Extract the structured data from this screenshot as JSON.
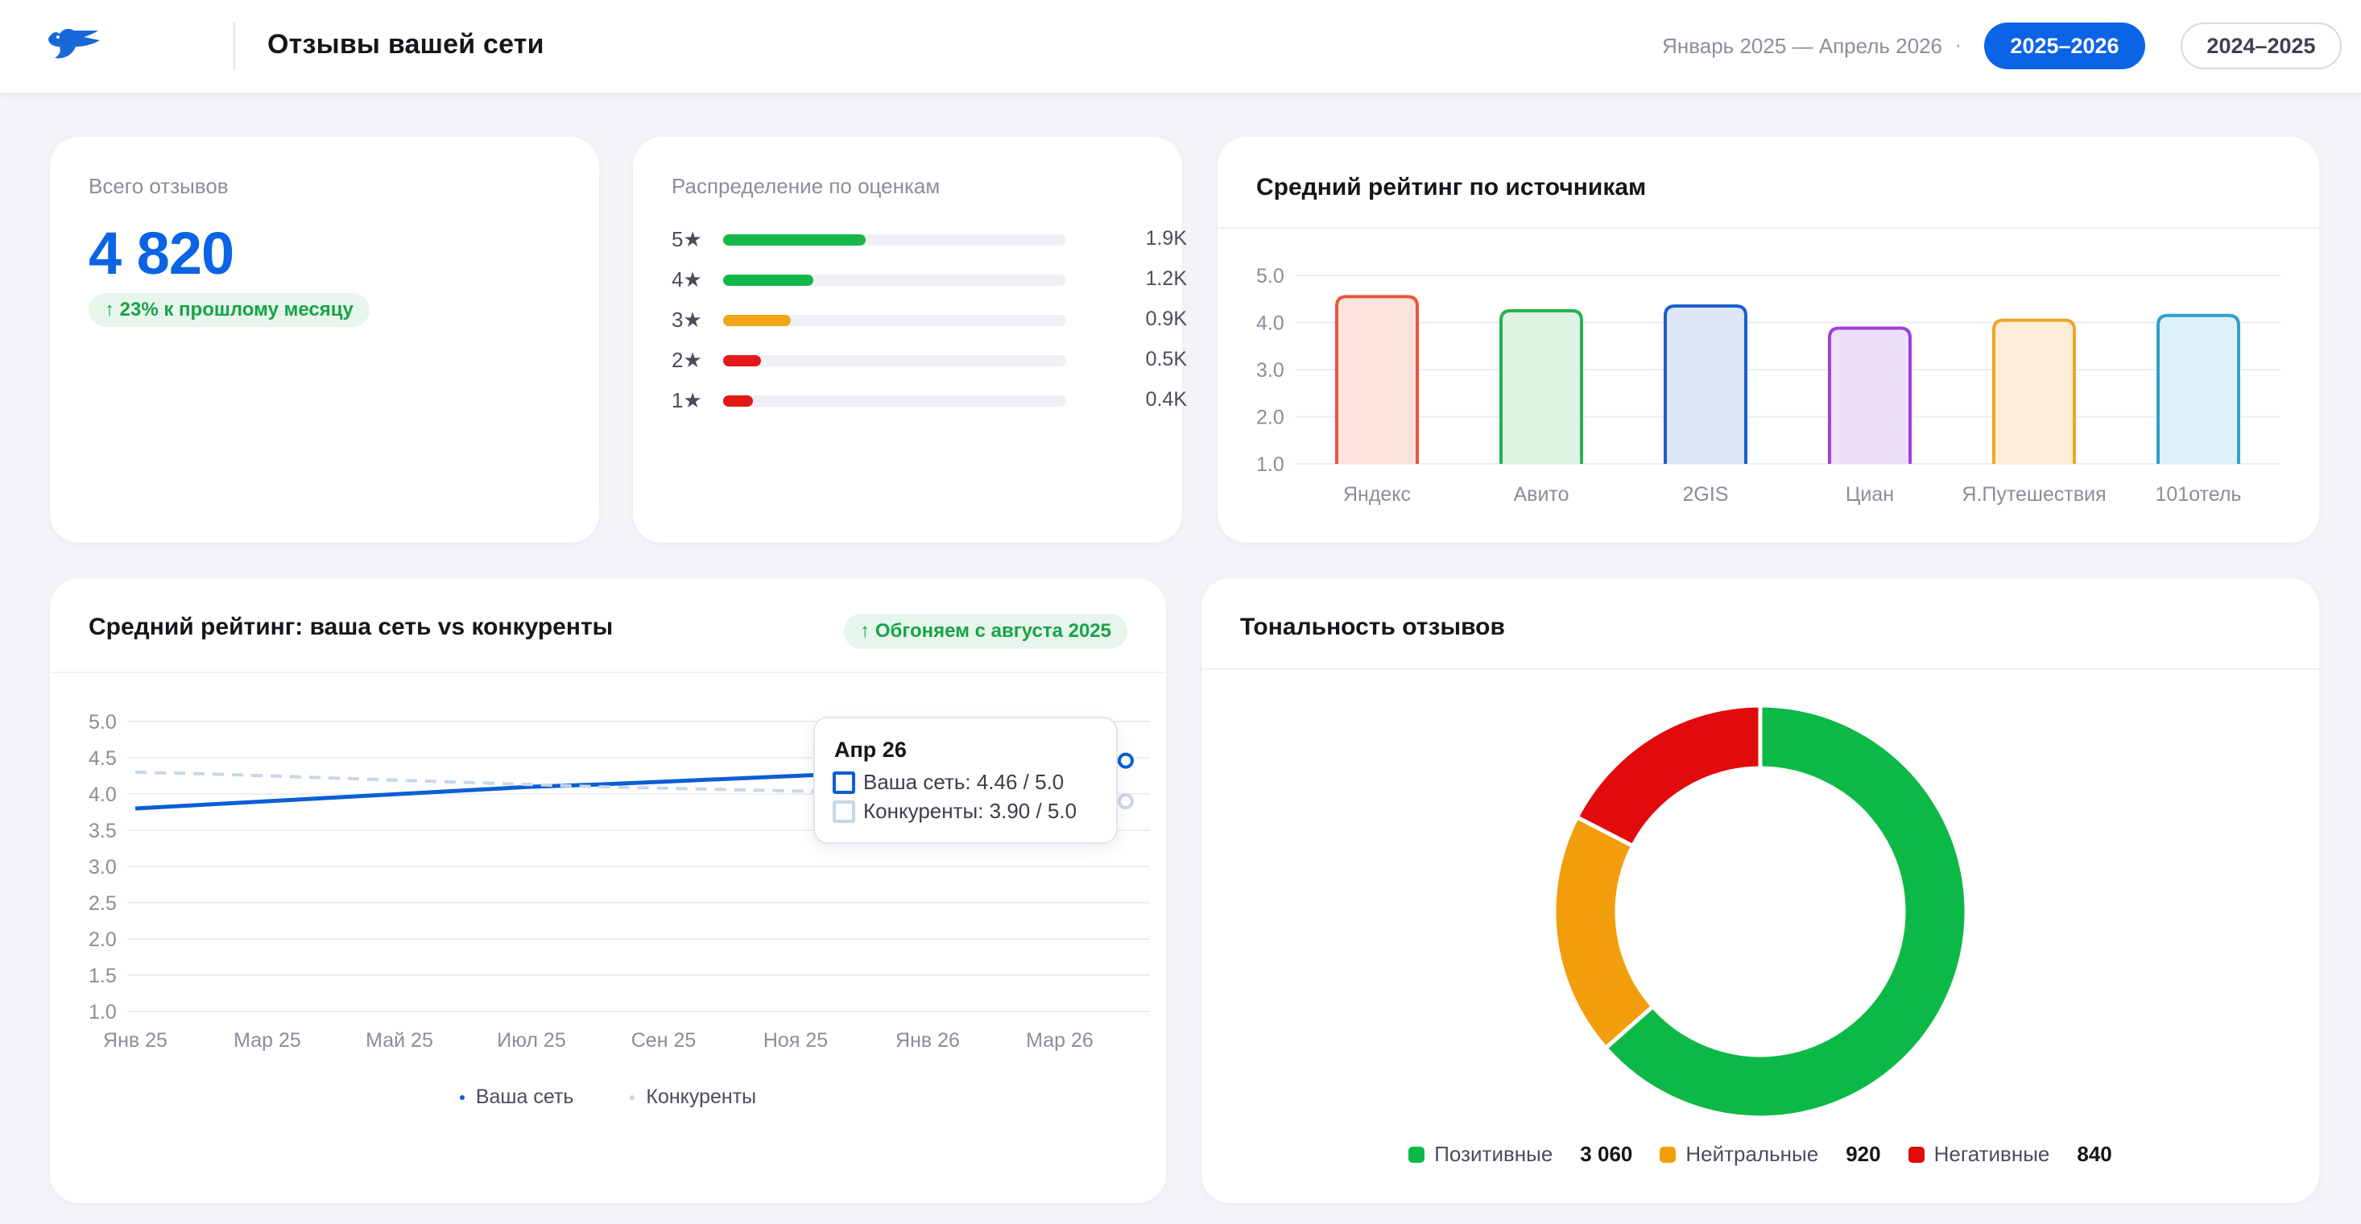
{
  "header": {
    "title": "Отзывы вашей сети",
    "date_range": "Январь 2025 — Апрель 2026",
    "separator": "·",
    "periods": [
      "2025–2026",
      "2024–2025"
    ],
    "active_period": "2025–2026",
    "logo_icon": "bird-logo-icon"
  },
  "total": {
    "label": "Всего отзывов",
    "value": "4 820",
    "delta": "↑ 23% к прошлому месяцу"
  },
  "distribution": {
    "label": "Распределение по оценкам",
    "rows": [
      {
        "stars": "5★",
        "count": "1.9K",
        "value": 1900,
        "color": "#14b84a"
      },
      {
        "stars": "4★",
        "count": "1.2K",
        "value": 1200,
        "color": "#14b84a"
      },
      {
        "stars": "3★",
        "count": "0.9K",
        "value": 900,
        "color": "#f2a516"
      },
      {
        "stars": "2★",
        "count": "0.5K",
        "value": 500,
        "color": "#e31818"
      },
      {
        "stars": "1★",
        "count": "0.4K",
        "value": 400,
        "color": "#e31818"
      }
    ],
    "max": 4800
  },
  "sources": {
    "title": "Средний рейтинг по источникам",
    "chart_data": {
      "type": "bar",
      "categories": [
        "Яндекс",
        "Авито",
        "2GIS",
        "Циан",
        "Я.Путешествия",
        "101отель"
      ],
      "values": [
        4.55,
        4.25,
        4.35,
        3.88,
        4.05,
        4.15
      ],
      "colors": [
        "#e8573a",
        "#25b24f",
        "#1a5fcc",
        "#a040d8",
        "#f0a425",
        "#2fa0cc"
      ],
      "fills": [
        "#fde3de",
        "#dff3e4",
        "#dde7f8",
        "#eee0fb",
        "#fdedd8",
        "#ddf1f8"
      ],
      "yticks": [
        "5.0",
        "4.0",
        "3.0",
        "2.0",
        "1.0"
      ],
      "ylim": [
        1,
        5
      ],
      "grid": true
    }
  },
  "trend": {
    "title": "Средний рейтинг: ваша сеть vs конкуренты",
    "badge": "↑ Обгоняем с августа 2025",
    "chart_data": {
      "type": "line",
      "x": [
        "Янв 25",
        "Фев 25",
        "Мар 25",
        "Апр 25",
        "Май 25",
        "Июн 25",
        "Июл 25",
        "Авг 25",
        "Сен 25",
        "Окт 25",
        "Ноя 25",
        "Дек 25",
        "Янв 26",
        "Фев 26",
        "Мар 26",
        "Апр 26"
      ],
      "xticks": [
        "Янв 25",
        "Мар 25",
        "Май 25",
        "Июл 25",
        "Сен 25",
        "Ноя 25",
        "Янв 26",
        "Мар 26"
      ],
      "yticks": [
        "5.0",
        "4.5",
        "4.0",
        "3.5",
        "3.0",
        "2.5",
        "2.0",
        "1.5",
        "1.0"
      ],
      "ylim": [
        1,
        5
      ],
      "series": [
        {
          "name": "Ваша сеть",
          "color": "#0b5fd4",
          "dashed": false,
          "values": [
            3.8,
            3.85,
            3.9,
            3.95,
            4.0,
            4.05,
            4.1,
            4.13,
            4.17,
            4.21,
            4.25,
            4.29,
            4.33,
            4.37,
            4.42,
            4.46
          ]
        },
        {
          "name": "Конкуренты",
          "color": "#c9d6ea",
          "dashed": true,
          "values": [
            4.3,
            4.28,
            4.25,
            4.22,
            4.19,
            4.16,
            4.13,
            4.1,
            4.08,
            4.06,
            4.04,
            4.02,
            4.0,
            3.97,
            3.94,
            3.9
          ]
        }
      ]
    },
    "tooltip": {
      "title": "Апр 26",
      "rows": [
        "Ваша сеть: 4.46 / 5.0",
        "Конкуренты: 3.90 / 5.0"
      ]
    },
    "legend": [
      "Ваша сеть",
      "Конкуренты"
    ]
  },
  "sentiment": {
    "title": "Тональность отзывов",
    "chart_data": {
      "type": "pie",
      "labels": [
        "Позитивные",
        "Нейтральные",
        "Негативные"
      ],
      "values": [
        3060,
        920,
        840
      ],
      "colors": [
        "#0db946",
        "#f29e0c",
        "#e20b0b"
      ]
    },
    "legend": [
      {
        "label": "Позитивные",
        "value": "3 060"
      },
      {
        "label": "Нейтральные",
        "value": "920"
      },
      {
        "label": "Негативные",
        "value": "840"
      }
    ]
  }
}
